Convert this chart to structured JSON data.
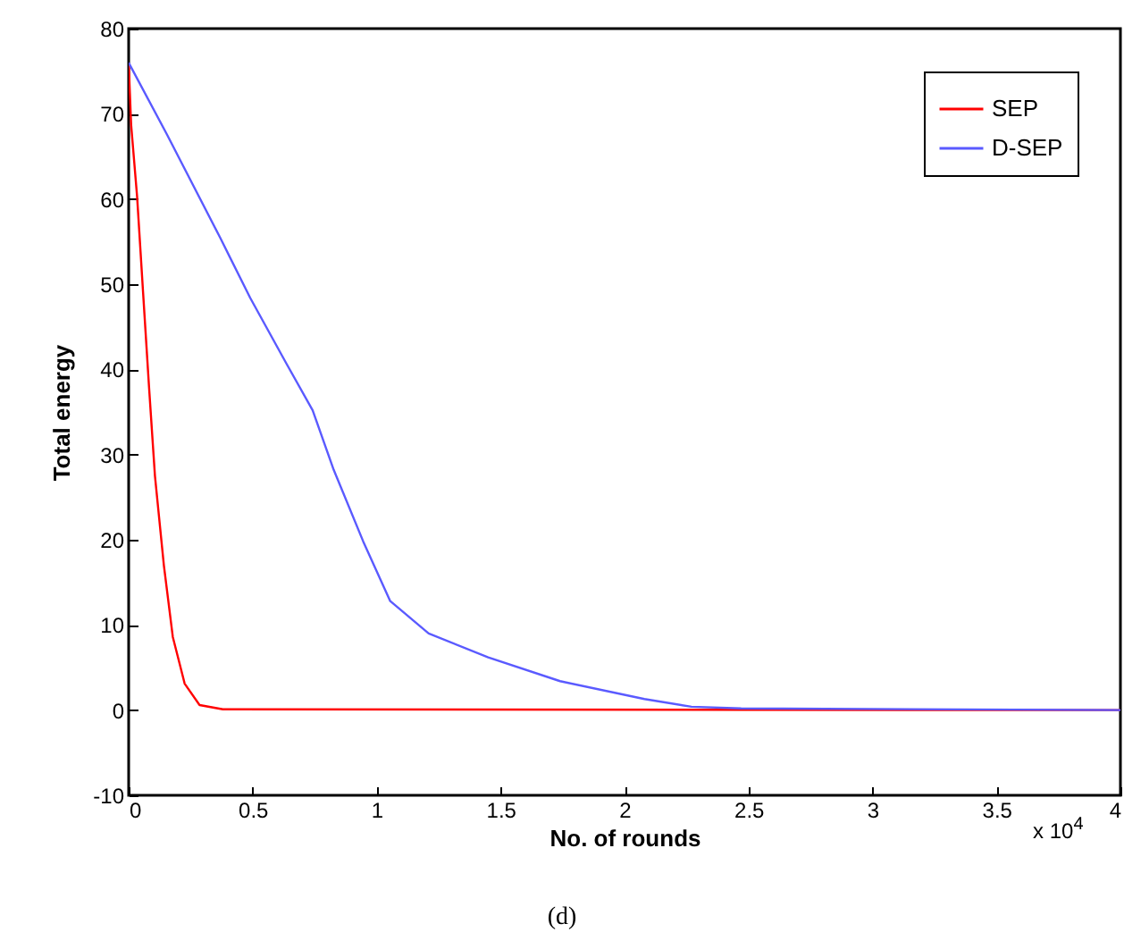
{
  "chart_data": {
    "type": "line",
    "xlabel": "No. of rounds",
    "ylabel": "Total energy",
    "xlim": [
      0,
      4
    ],
    "ylim": [
      -10,
      80
    ],
    "xticks": [
      0,
      0.5,
      1,
      1.5,
      2,
      2.5,
      3,
      3.5,
      4
    ],
    "yticks": [
      -10,
      0,
      10,
      20,
      30,
      40,
      50,
      60,
      70,
      80
    ],
    "annotations": [
      "x 10$^{4}$",
      "(d)"
    ],
    "legend": "top right",
    "grid": false,
    "line_style": "solid",
    "marker": "none",
    "series": [
      {
        "name": "SEP",
        "color": "#ff0000",
        "x": [
          0,
          0.01,
          0.034,
          0.058,
          0.082,
          0.106,
          0.142,
          0.178,
          0.226,
          0.286,
          0.38,
          4
        ],
        "values": [
          76,
          68.7,
          60.3,
          49.1,
          38,
          27.5,
          17,
          8.6,
          3.1,
          0.6,
          0.1,
          0
        ]
      },
      {
        "name": "D-SEP",
        "color": "#5a5aff",
        "x": [
          0,
          0.154,
          0.37,
          0.49,
          0.634,
          0.742,
          0.827,
          0.946,
          1.055,
          1.21,
          1.45,
          1.74,
          2.08,
          2.27,
          2.47,
          4
        ],
        "values": [
          76,
          67.6,
          55.4,
          48.4,
          40.8,
          35.2,
          28.2,
          19.8,
          12.8,
          9,
          6.2,
          3.4,
          1.3,
          0.4,
          0.2,
          0
        ]
      }
    ]
  }
}
